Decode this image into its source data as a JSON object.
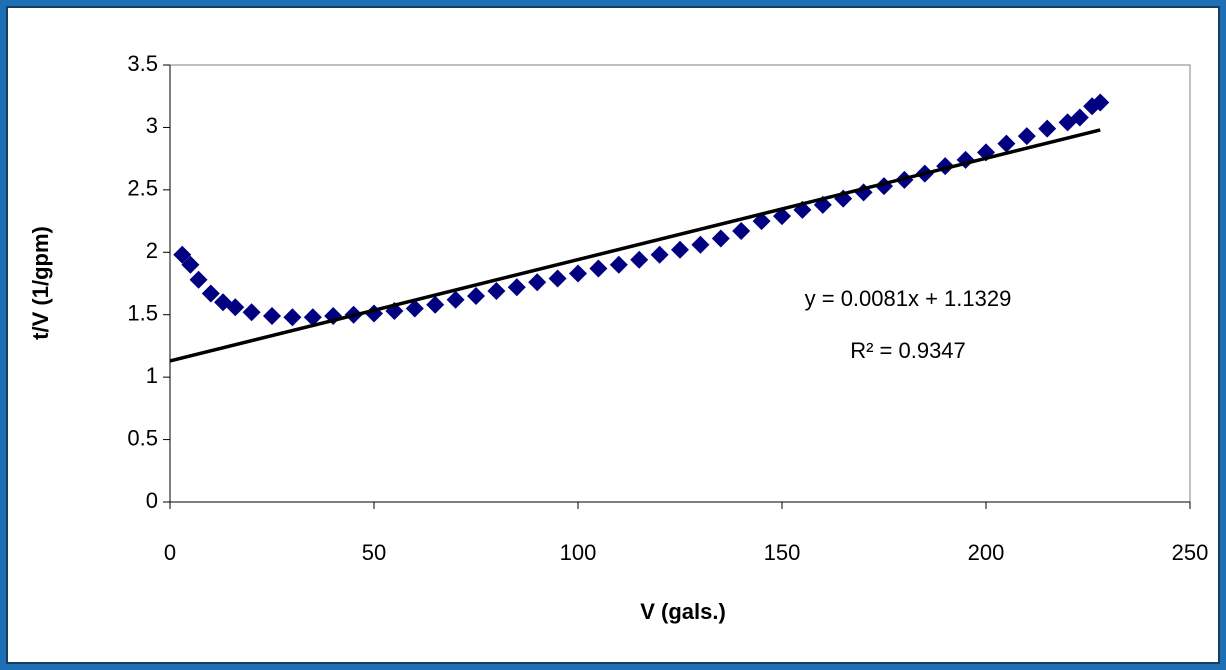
{
  "chart_data": {
    "type": "scatter",
    "xlabel": "V (gals.)",
    "ylabel": "t/V (1/gpm)",
    "x": [
      3,
      5,
      7,
      10,
      13,
      16,
      20,
      25,
      30,
      35,
      40,
      45,
      50,
      55,
      60,
      65,
      70,
      75,
      80,
      85,
      90,
      95,
      100,
      105,
      110,
      115,
      120,
      125,
      130,
      135,
      140,
      145,
      150,
      155,
      160,
      165,
      170,
      175,
      180,
      185,
      190,
      195,
      200,
      205,
      210,
      215,
      220,
      223,
      226,
      228
    ],
    "values": [
      1.98,
      1.9,
      1.78,
      1.67,
      1.6,
      1.56,
      1.52,
      1.49,
      1.48,
      1.48,
      1.49,
      1.5,
      1.51,
      1.53,
      1.55,
      1.58,
      1.62,
      1.65,
      1.69,
      1.72,
      1.76,
      1.79,
      1.83,
      1.87,
      1.9,
      1.94,
      1.98,
      2.02,
      2.06,
      2.11,
      2.17,
      2.25,
      2.29,
      2.34,
      2.38,
      2.43,
      2.48,
      2.53,
      2.58,
      2.63,
      2.69,
      2.74,
      2.8,
      2.87,
      2.93,
      2.99,
      3.04,
      3.08,
      3.17,
      3.2
    ],
    "color": "#000080",
    "trendline": {
      "x": [
        0,
        228
      ],
      "values": [
        1.13,
        2.98
      ],
      "color": "#000000"
    },
    "annotations": [
      "y = 0.0081x + 1.1329",
      "R² = 0.9347"
    ],
    "xlim": [
      0,
      250
    ],
    "xticks": [
      0,
      50,
      100,
      150,
      200,
      250
    ],
    "ylim": [
      0,
      3.5
    ],
    "yticks": [
      0,
      0.5,
      1,
      1.5,
      2,
      2.5,
      3,
      3.5
    ]
  }
}
